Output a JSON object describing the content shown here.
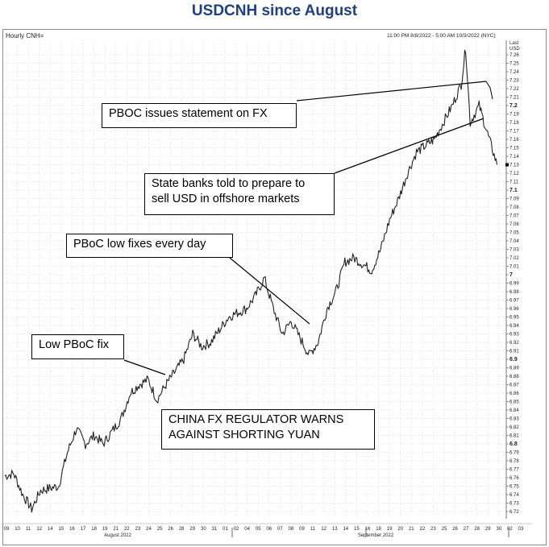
{
  "title": "USDCNH since August",
  "chart_header": {
    "instrument": "Hourly CNH=",
    "range": "11:00 PM 8/8/2022 - 5:00 AM 10/3/2022 (NYC)"
  },
  "chart_data": {
    "type": "line",
    "ylabel": "Last\nUSD",
    "ylim": [
      6.715,
      7.285
    ],
    "y_tick_values": [
      6.72,
      6.73,
      6.74,
      6.75,
      6.76,
      6.77,
      6.78,
      6.79,
      6.8,
      6.81,
      6.82,
      6.83,
      6.84,
      6.85,
      6.86,
      6.87,
      6.88,
      6.89,
      6.9,
      6.91,
      6.92,
      6.93,
      6.94,
      6.95,
      6.96,
      6.97,
      6.98,
      6.99,
      7,
      7.01,
      7.02,
      7.03,
      7.04,
      7.05,
      7.06,
      7.07,
      7.08,
      7.09,
      7.1,
      7.11,
      7.12,
      7.13,
      7.14,
      7.15,
      7.16,
      7.17,
      7.18,
      7.19,
      7.2,
      7.21,
      7.22,
      7.23,
      7.24,
      7.25,
      7.26
    ],
    "y_bold_ticks": [
      6.8,
      6.9,
      7,
      7.1,
      7.2
    ],
    "x_tick_labels": [
      "09",
      "10",
      "11",
      "12",
      "14",
      "15",
      "16",
      "17",
      "18",
      "19",
      "21",
      "22",
      "23",
      "24",
      "25",
      "26",
      "28",
      "29",
      "30",
      "31",
      "01",
      "02",
      "04",
      "05",
      "06",
      "07",
      "08",
      "09",
      "11",
      "12",
      "13",
      "14",
      "15",
      "16",
      "18",
      "19",
      "20",
      "21",
      "22",
      "23",
      "25",
      "26",
      "27",
      "28",
      "29",
      "30",
      "02",
      "03"
    ],
    "month_labels": [
      "August 2022",
      "September 2022"
    ],
    "last_price_marker": 7.13,
    "series": [
      {
        "values": [
          [
            "08-08",
            6.762
          ],
          [
            "08-09",
            6.765
          ],
          [
            "08-10",
            6.74
          ],
          [
            "08-11",
            6.723
          ],
          [
            "08-12",
            6.745
          ],
          [
            "08-14",
            6.75
          ],
          [
            "08-15",
            6.79
          ],
          [
            "08-16",
            6.818
          ],
          [
            "08-17",
            6.8
          ],
          [
            "08-18",
            6.81
          ],
          [
            "08-19",
            6.8
          ],
          [
            "08-21",
            6.83
          ],
          [
            "08-22",
            6.86
          ],
          [
            "08-23",
            6.87
          ],
          [
            "08-24",
            6.876
          ],
          [
            "08-25",
            6.852
          ],
          [
            "08-26",
            6.87
          ],
          [
            "08-28",
            6.9
          ],
          [
            "08-29",
            6.93
          ],
          [
            "08-30",
            6.915
          ],
          [
            "08-31",
            6.92
          ],
          [
            "09-01",
            6.935
          ],
          [
            "09-02",
            6.95
          ],
          [
            "09-04",
            6.96
          ],
          [
            "09-05",
            6.975
          ],
          [
            "09-06",
            6.996
          ],
          [
            "09-07",
            6.96
          ],
          [
            "09-08",
            6.93
          ],
          [
            "09-09",
            6.945
          ],
          [
            "09-11",
            6.905
          ],
          [
            "09-12",
            6.92
          ],
          [
            "09-13",
            6.96
          ],
          [
            "09-14",
            6.98
          ],
          [
            "09-15",
            7.015
          ],
          [
            "09-16",
            7.02
          ],
          [
            "09-18",
            7.005
          ],
          [
            "09-19",
            7.03
          ],
          [
            "09-20",
            7.065
          ],
          [
            "09-21",
            7.09
          ],
          [
            "09-22",
            7.12
          ],
          [
            "09-23",
            7.145
          ],
          [
            "09-25",
            7.16
          ],
          [
            "09-26",
            7.18
          ],
          [
            "09-27",
            7.2
          ],
          [
            "09-28",
            7.225
          ],
          [
            "09-28.5",
            7.268
          ],
          [
            "09-29",
            7.18
          ],
          [
            "09-30",
            7.2
          ],
          [
            "10-02",
            7.13
          ]
        ]
      }
    ]
  },
  "annotations": [
    {
      "text": "PBOC issues statement on FX"
    },
    {
      "text": "State banks told to prepare to\nsell USD in offshore markets"
    },
    {
      "text": "PBoC low fixes every day"
    },
    {
      "text": "Low PBoC fix"
    },
    {
      "text": "CHINA FX REGULATOR WARNS\nAGAINST SHORTING YUAN"
    }
  ]
}
